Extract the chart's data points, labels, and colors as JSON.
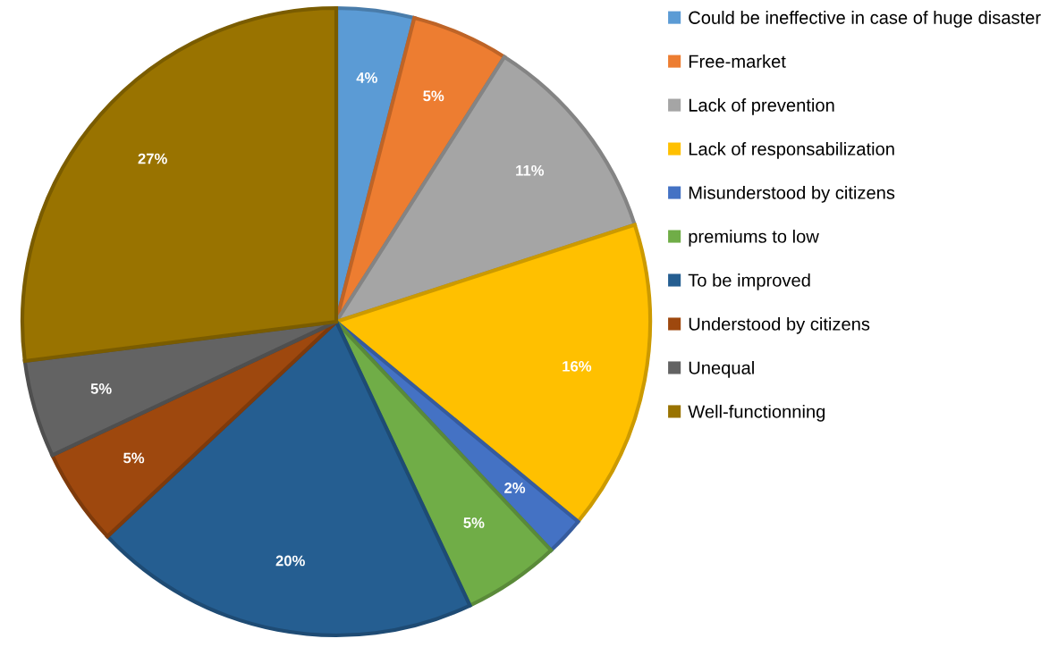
{
  "chart_data": {
    "type": "pie",
    "categories": [
      "Could be ineffective in case of huge disaster",
      "Free-market",
      "Lack of prevention",
      "Lack of responsabilization",
      "Misunderstood by citizens",
      "premiums to low",
      "To be improved",
      "Understood by citizens",
      "Unequal",
      "Well-functionning"
    ],
    "values": [
      4,
      5,
      11,
      16,
      2,
      5,
      20,
      5,
      5,
      27
    ],
    "colors": [
      "#5b9bd5",
      "#ed7d31",
      "#a5a5a5",
      "#ffc000",
      "#4472c4",
      "#70ad47",
      "#255e91",
      "#9e480e",
      "#636363",
      "#997300"
    ],
    "value_labels": [
      "4%",
      "5%",
      "11%",
      "16%",
      "2%",
      "5%",
      "20%",
      "5%",
      "5%",
      "27%"
    ],
    "legend": "right"
  }
}
